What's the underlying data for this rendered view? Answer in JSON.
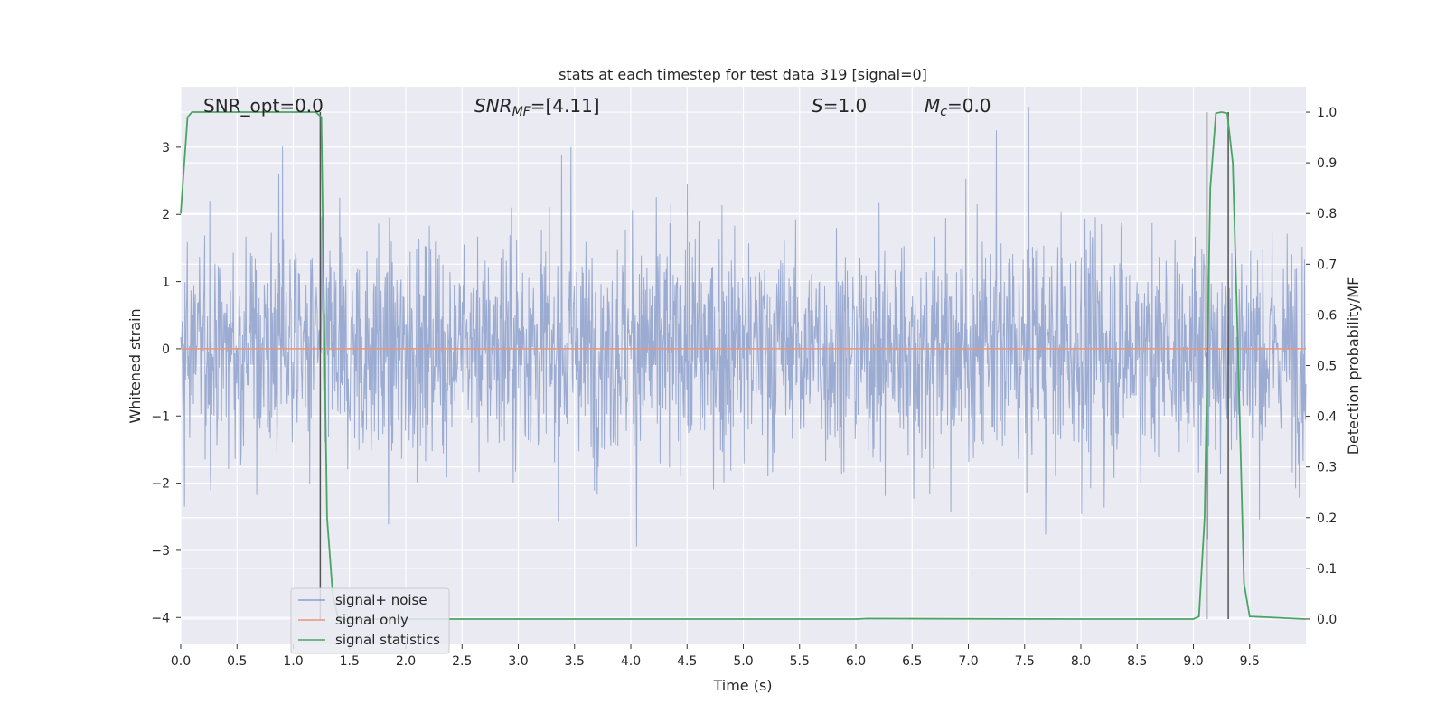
{
  "chart_data": {
    "type": "line",
    "title": "stats at each timestep for test data 319 [signal=0]",
    "xlabel": "Time (s)",
    "ylabel": "Whitened strain",
    "y2label": "Detection probability/MF",
    "xlim": [
      0,
      10
    ],
    "ylim": [
      -4.4,
      3.9
    ],
    "y2lim": [
      -0.05,
      1.05
    ],
    "x_ticks": [
      "0.0",
      "0.5",
      "1.0",
      "1.5",
      "2.0",
      "2.5",
      "3.0",
      "3.5",
      "4.0",
      "4.5",
      "5.0",
      "5.5",
      "6.0",
      "6.5",
      "7.0",
      "7.5",
      "8.0",
      "8.5",
      "9.0",
      "9.5"
    ],
    "y_ticks": [
      "3",
      "2",
      "1",
      "0",
      "−1",
      "−2",
      "−3",
      "−4"
    ],
    "y2_ticks": [
      "1.0",
      "0.9",
      "0.8",
      "0.7",
      "0.6",
      "0.5",
      "0.4",
      "0.3",
      "0.2",
      "0.1",
      "0.0"
    ],
    "grid": true,
    "legend_position": "lower-left",
    "annotations": {
      "snr_opt": "SNR_opt=0.0",
      "snr_mf_main": "SNR",
      "snr_mf_sub": "MF",
      "snr_mf_value": "=[4.11]",
      "s_main": "S",
      "s_value": "=1.0",
      "mc_main": "M",
      "mc_sub": "c",
      "mc_value": "=0.0"
    },
    "series": [
      {
        "name": "signal+ noise",
        "color": "#8da0cb",
        "axis": "left",
        "description_values": "whitened strain noise, approx. within [-3.7, 3.6]"
      },
      {
        "name": "signal only",
        "color": "#e8967a",
        "axis": "left",
        "x": [
          0,
          10
        ],
        "y": [
          0,
          0
        ]
      },
      {
        "name": "signal statistics",
        "color": "#4aa564",
        "axis": "right",
        "x": [
          0.0,
          0.06,
          0.1,
          0.5,
          1.0,
          1.2,
          1.25,
          1.28,
          1.3,
          1.35,
          1.4,
          2.0,
          4.0,
          6.0,
          6.1,
          8.0,
          9.0,
          9.05,
          9.1,
          9.15,
          9.2,
          9.25,
          9.3,
          9.35,
          9.4,
          9.45,
          9.5,
          10.0
        ],
        "y": [
          0.8,
          0.99,
          1.0,
          1.0,
          1.0,
          1.0,
          0.99,
          0.5,
          0.2,
          0.05,
          0.0,
          0.0,
          0.0,
          0.0,
          0.001,
          0.0,
          0.0,
          0.005,
          0.2,
          0.85,
          0.998,
          1.0,
          0.998,
          0.9,
          0.5,
          0.07,
          0.005,
          0.0
        ]
      }
    ],
    "vertical_lines_x": [
      1.24,
      9.12,
      9.31
    ],
    "vertical_lines_color": "#555555"
  }
}
